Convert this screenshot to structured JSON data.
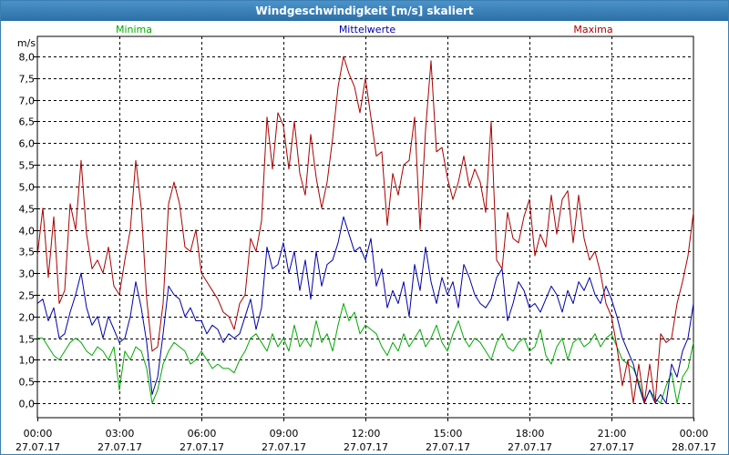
{
  "window": {
    "title": "Windgeschwindigkeit [m/s] skaliert"
  },
  "chart_data": {
    "type": "line",
    "title": "Windgeschwindigkeit [m/s] skaliert",
    "ylabel": "m/s",
    "ylim": [
      0,
      8
    ],
    "yticks": [
      0,
      0.5,
      1,
      1.5,
      2,
      2.5,
      3,
      3.5,
      4,
      4.5,
      5,
      5.5,
      6,
      6.5,
      7,
      7.5,
      8
    ],
    "ytick_labels": [
      "0,0",
      "0,5",
      "1,0",
      "1,5",
      "2,0",
      "2,5",
      "3,0",
      "3,5",
      "4,0",
      "4,5",
      "5,0",
      "5,5",
      "6,0",
      "6,5",
      "7,0",
      "7,5",
      "8,0"
    ],
    "xlim": [
      0,
      24
    ],
    "xticks": [
      0,
      3,
      6,
      9,
      12,
      15,
      18,
      21,
      24
    ],
    "xtick_time_labels": [
      "00:00",
      "03:00",
      "06:00",
      "09:00",
      "12:00",
      "15:00",
      "18:00",
      "21:00",
      "00:00"
    ],
    "xtick_date_labels": [
      "27.07.17",
      "27.07.17",
      "27.07.17",
      "27.07.17",
      "27.07.17",
      "27.07.17",
      "27.07.17",
      "27.07.17",
      "28.07.17"
    ],
    "grid": true,
    "legend_placement": "top",
    "x": [
      0,
      0.2,
      0.4,
      0.6,
      0.8,
      1,
      1.2,
      1.4,
      1.6,
      1.8,
      2,
      2.2,
      2.4,
      2.6,
      2.8,
      3,
      3.2,
      3.4,
      3.6,
      3.8,
      4,
      4.2,
      4.4,
      4.6,
      4.8,
      5,
      5.2,
      5.4,
      5.6,
      5.8,
      6,
      6.2,
      6.4,
      6.6,
      6.8,
      7,
      7.2,
      7.4,
      7.6,
      7.8,
      8,
      8.2,
      8.4,
      8.6,
      8.8,
      9,
      9.2,
      9.4,
      9.6,
      9.8,
      10,
      10.2,
      10.4,
      10.6,
      10.8,
      11,
      11.2,
      11.4,
      11.6,
      11.8,
      12,
      12.2,
      12.4,
      12.6,
      12.8,
      13,
      13.2,
      13.4,
      13.6,
      13.8,
      14,
      14.2,
      14.4,
      14.6,
      14.8,
      15,
      15.2,
      15.4,
      15.6,
      15.8,
      16,
      16.2,
      16.4,
      16.6,
      16.8,
      17,
      17.2,
      17.4,
      17.6,
      17.8,
      18,
      18.2,
      18.4,
      18.6,
      18.8,
      19,
      19.2,
      19.4,
      19.6,
      19.8,
      20,
      20.2,
      20.4,
      20.6,
      20.8,
      21,
      21.2,
      21.4,
      21.6,
      21.8,
      22,
      22.2,
      22.4,
      22.6,
      22.8,
      23,
      23.2,
      23.4,
      23.6,
      23.8,
      24
    ],
    "series": [
      {
        "name": "Minima",
        "color": "#00aa00",
        "values": [
          1.5,
          1.5,
          1.3,
          1.1,
          1.0,
          1.2,
          1.4,
          1.5,
          1.4,
          1.2,
          1.1,
          1.3,
          1.2,
          1.0,
          1.3,
          0.3,
          1.2,
          1.0,
          1.3,
          1.2,
          0.8,
          0.0,
          0.3,
          0.9,
          1.2,
          1.4,
          1.3,
          1.2,
          0.9,
          1.0,
          1.2,
          1.0,
          0.8,
          0.9,
          0.8,
          0.8,
          0.7,
          1.0,
          1.2,
          1.5,
          1.6,
          1.4,
          1.2,
          1.6,
          1.3,
          1.5,
          1.2,
          1.8,
          1.3,
          1.5,
          1.3,
          1.9,
          1.4,
          1.6,
          1.2,
          1.8,
          2.3,
          1.9,
          2.1,
          1.6,
          1.8,
          1.7,
          1.6,
          1.3,
          1.1,
          1.4,
          1.2,
          1.6,
          1.3,
          1.5,
          1.7,
          1.3,
          1.5,
          1.8,
          1.4,
          1.2,
          1.6,
          1.9,
          1.5,
          1.3,
          1.5,
          1.4,
          1.2,
          1.0,
          1.4,
          1.6,
          1.3,
          1.2,
          1.4,
          1.5,
          1.2,
          1.3,
          1.7,
          1.1,
          0.9,
          1.3,
          1.5,
          1.0,
          1.4,
          1.5,
          1.3,
          1.4,
          1.6,
          1.3,
          1.5,
          1.6,
          1.3,
          1.0,
          0.9,
          0.8,
          0.5,
          0.0,
          0.3,
          0.1,
          0.0,
          0.4,
          0.7,
          0.0,
          0.6,
          0.8,
          1.4
        ]
      },
      {
        "name": "Mittelwerte",
        "color": "#0000aa",
        "values": [
          2.3,
          2.4,
          1.9,
          2.2,
          1.5,
          1.6,
          2.1,
          2.5,
          3.0,
          2.2,
          1.8,
          2.0,
          1.5,
          2.0,
          1.7,
          1.4,
          1.5,
          2.0,
          2.8,
          2.2,
          1.4,
          0.2,
          0.6,
          1.6,
          2.7,
          2.5,
          2.4,
          2.0,
          2.2,
          1.9,
          1.9,
          1.6,
          1.8,
          1.7,
          1.4,
          1.6,
          1.5,
          1.6,
          2.0,
          2.4,
          1.7,
          2.2,
          3.6,
          3.1,
          3.2,
          3.7,
          3.0,
          3.5,
          2.6,
          3.3,
          2.4,
          3.5,
          2.7,
          3.2,
          3.3,
          3.7,
          4.3,
          3.9,
          3.5,
          3.6,
          3.3,
          3.8,
          2.7,
          3.1,
          2.2,
          2.6,
          2.3,
          2.8,
          2.0,
          3.2,
          2.6,
          3.6,
          2.8,
          2.3,
          2.9,
          2.5,
          2.8,
          2.2,
          3.2,
          2.9,
          2.5,
          2.3,
          2.2,
          2.4,
          2.9,
          3.1,
          1.9,
          2.3,
          2.8,
          2.6,
          2.2,
          2.3,
          2.1,
          2.4,
          2.7,
          2.5,
          2.1,
          2.6,
          2.3,
          2.8,
          2.6,
          2.9,
          2.5,
          2.3,
          2.7,
          2.4,
          2.0,
          1.5,
          1.2,
          0.9,
          0.4,
          0.0,
          0.3,
          0.0,
          0.2,
          0.0,
          0.9,
          0.6,
          1.2,
          1.5,
          2.3
        ]
      },
      {
        "name": "Maxima",
        "color": "#aa0000",
        "values": [
          3.4,
          4.5,
          2.9,
          4.3,
          2.3,
          2.6,
          4.6,
          4.0,
          5.6,
          3.9,
          3.1,
          3.3,
          3.0,
          3.6,
          2.7,
          2.5,
          3.3,
          4.0,
          5.6,
          4.5,
          2.4,
          1.2,
          1.3,
          2.3,
          4.6,
          5.1,
          4.6,
          3.6,
          3.5,
          4.0,
          3.0,
          2.8,
          2.6,
          2.4,
          2.1,
          2.0,
          1.7,
          2.3,
          2.5,
          3.8,
          3.5,
          4.2,
          6.6,
          5.4,
          6.7,
          6.4,
          5.4,
          6.5,
          5.3,
          4.8,
          6.2,
          5.2,
          4.5,
          5.1,
          6.1,
          7.3,
          8.0,
          7.6,
          7.3,
          6.7,
          7.5,
          6.6,
          5.7,
          5.8,
          4.1,
          5.3,
          4.8,
          5.5,
          5.6,
          6.6,
          4.0,
          6.3,
          7.9,
          5.8,
          5.9,
          5.2,
          4.7,
          5.1,
          5.7,
          5.0,
          5.4,
          5.1,
          4.4,
          6.5,
          3.3,
          3.1,
          4.4,
          3.8,
          3.7,
          4.3,
          4.7,
          3.4,
          3.9,
          3.6,
          4.8,
          3.9,
          4.7,
          4.9,
          3.7,
          4.8,
          3.8,
          3.3,
          3.5,
          3.0,
          2.3,
          2.0,
          1.3,
          0.4,
          1.0,
          0.0,
          0.9,
          0.0,
          0.9,
          0.0,
          1.6,
          1.4,
          1.5,
          2.3,
          2.8,
          3.4,
          4.4
        ]
      }
    ]
  }
}
